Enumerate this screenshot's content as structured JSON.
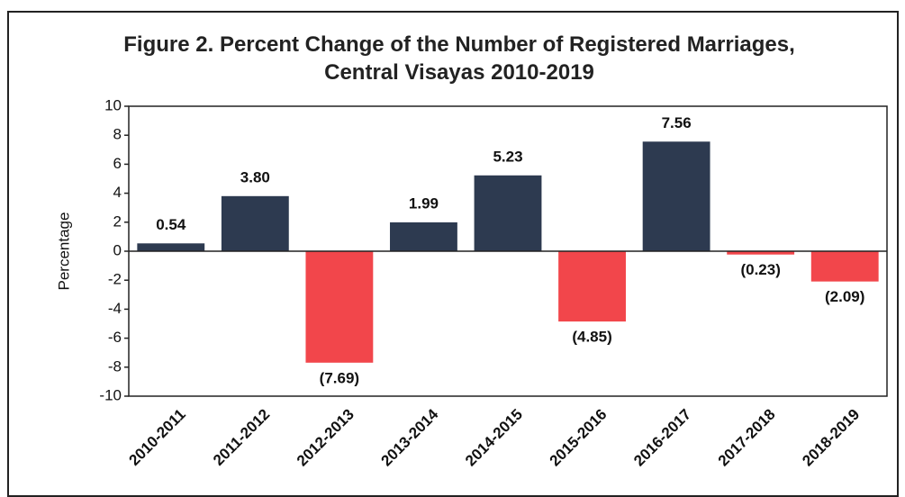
{
  "chart_data": {
    "type": "bar",
    "title": "Figure 2. Percent Change of the Number of Registered Marriages, Central Visayas 2010-2019",
    "y_label": "Percentage",
    "categories": [
      "2010-2011",
      "2011-2012",
      "2012-2013",
      "2013-2014",
      "2014-2015",
      "2015-2016",
      "2016-2017",
      "2017-2018",
      "2018-2019"
    ],
    "values": [
      0.54,
      3.8,
      -7.69,
      1.99,
      5.23,
      -4.85,
      7.56,
      -0.23,
      -2.09
    ],
    "value_labels": [
      "0.54",
      "3.80",
      "(7.69)",
      "1.99",
      "5.23",
      "(4.85)",
      "7.56",
      "(0.23)",
      "(2.09)"
    ],
    "color": "#2d3a50",
    "negative_color": "#f2464b",
    "ylim": [
      -10,
      10
    ],
    "yticks": [
      -10,
      -8,
      -6,
      -4,
      -2,
      0,
      2,
      4,
      6,
      8,
      10
    ],
    "grid": false
  }
}
